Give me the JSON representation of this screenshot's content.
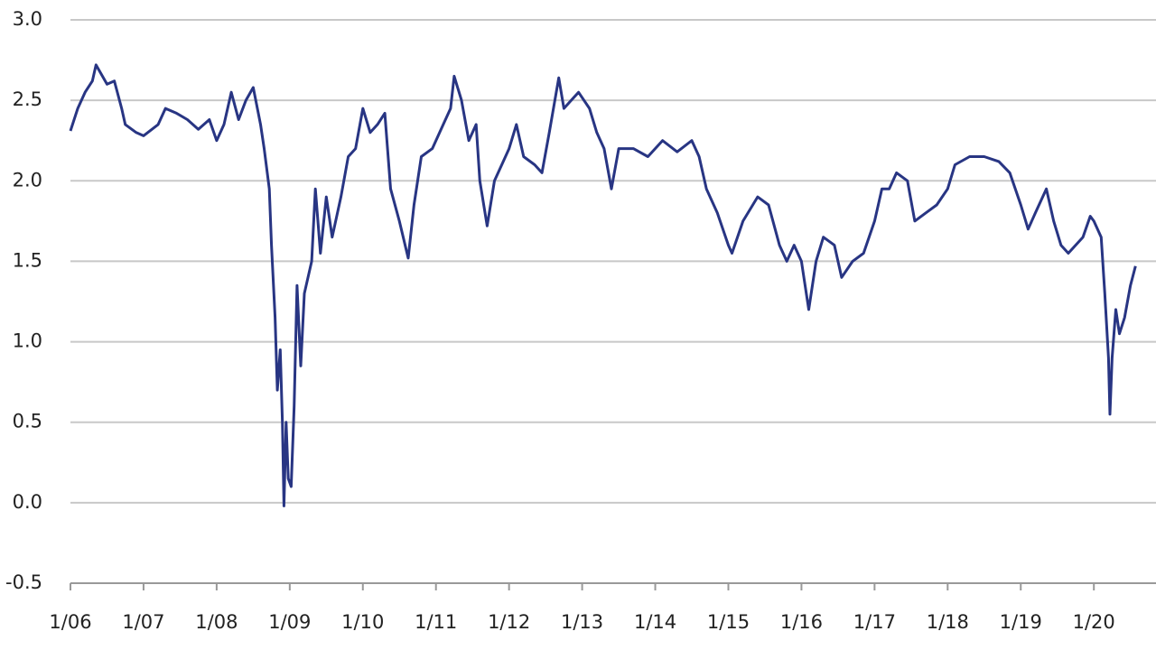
{
  "chart_data": {
    "type": "line",
    "x": [
      2006.0,
      2006.1,
      2006.2,
      2006.3,
      2006.35,
      2006.5,
      2006.6,
      2006.7,
      2006.75,
      2006.9,
      2007.0,
      2007.2,
      2007.3,
      2007.45,
      2007.6,
      2007.75,
      2007.9,
      2008.0,
      2008.1,
      2008.2,
      2008.3,
      2008.4,
      2008.5,
      2008.6,
      2008.65,
      2008.72,
      2008.75,
      2008.8,
      2008.83,
      2008.87,
      2008.9,
      2008.92,
      2008.95,
      2008.98,
      2009.02,
      2009.06,
      2009.1,
      2009.15,
      2009.2,
      2009.3,
      2009.35,
      2009.42,
      2009.5,
      2009.58,
      2009.7,
      2009.8,
      2009.9,
      2010.0,
      2010.1,
      2010.2,
      2010.3,
      2010.38,
      2010.5,
      2010.62,
      2010.7,
      2010.8,
      2010.95,
      2011.1,
      2011.2,
      2011.25,
      2011.35,
      2011.45,
      2011.55,
      2011.6,
      2011.7,
      2011.8,
      2011.9,
      2012.0,
      2012.1,
      2012.2,
      2012.35,
      2012.45,
      2012.55,
      2012.68,
      2012.75,
      2012.85,
      2012.95,
      2013.1,
      2013.2,
      2013.3,
      2013.4,
      2013.5,
      2013.7,
      2013.9,
      2014.1,
      2014.3,
      2014.5,
      2014.6,
      2014.7,
      2014.85,
      2015.0,
      2015.05,
      2015.2,
      2015.4,
      2015.55,
      2015.7,
      2015.8,
      2015.9,
      2016.0,
      2016.1,
      2016.2,
      2016.3,
      2016.45,
      2016.55,
      2016.7,
      2016.85,
      2017.0,
      2017.1,
      2017.2,
      2017.3,
      2017.45,
      2017.55,
      2017.7,
      2017.85,
      2018.0,
      2018.1,
      2018.3,
      2018.5,
      2018.7,
      2018.85,
      2019.0,
      2019.1,
      2019.2,
      2019.35,
      2019.45,
      2019.55,
      2019.65,
      2019.75,
      2019.85,
      2019.95,
      2020.0,
      2020.1,
      2020.15,
      2020.2,
      2020.22,
      2020.25,
      2020.3,
      2020.35,
      2020.42,
      2020.5,
      2020.57
    ],
    "series": [
      {
        "color": "#283583",
        "values": [
          2.31,
          2.45,
          2.55,
          2.62,
          2.72,
          2.6,
          2.62,
          2.45,
          2.35,
          2.3,
          2.28,
          2.35,
          2.45,
          2.42,
          2.38,
          2.32,
          2.38,
          2.25,
          2.35,
          2.55,
          2.38,
          2.5,
          2.58,
          2.35,
          2.2,
          1.95,
          1.6,
          1.15,
          0.7,
          0.95,
          0.5,
          -0.02,
          0.5,
          0.15,
          0.1,
          0.6,
          1.35,
          0.85,
          1.3,
          1.5,
          1.95,
          1.55,
          1.9,
          1.65,
          1.9,
          2.15,
          2.2,
          2.45,
          2.3,
          2.35,
          2.42,
          1.95,
          1.75,
          1.52,
          1.85,
          2.15,
          2.2,
          2.35,
          2.45,
          2.65,
          2.5,
          2.25,
          2.35,
          2.0,
          1.72,
          2.0,
          2.1,
          2.2,
          2.35,
          2.15,
          2.1,
          2.05,
          2.3,
          2.64,
          2.45,
          2.5,
          2.55,
          2.45,
          2.3,
          2.2,
          1.95,
          2.2,
          2.2,
          2.15,
          2.25,
          2.18,
          2.25,
          2.15,
          1.95,
          1.8,
          1.6,
          1.55,
          1.75,
          1.9,
          1.85,
          1.6,
          1.5,
          1.6,
          1.5,
          1.2,
          1.5,
          1.65,
          1.6,
          1.4,
          1.5,
          1.55,
          1.75,
          1.95,
          1.95,
          2.05,
          2.0,
          1.75,
          1.8,
          1.85,
          1.95,
          2.1,
          2.15,
          2.15,
          2.12,
          2.05,
          1.85,
          1.7,
          1.8,
          1.95,
          1.75,
          1.6,
          1.55,
          1.6,
          1.65,
          1.78,
          1.75,
          1.65,
          1.3,
          0.9,
          0.55,
          0.9,
          1.2,
          1.05,
          1.15,
          1.35,
          1.47
        ]
      }
    ],
    "xlim": [
      2006,
      2020.85
    ],
    "xticks": [
      {
        "value": 2006,
        "label": "1/06"
      },
      {
        "value": 2007,
        "label": "1/07"
      },
      {
        "value": 2008,
        "label": "1/08"
      },
      {
        "value": 2009,
        "label": "1/09"
      },
      {
        "value": 2010,
        "label": "1/10"
      },
      {
        "value": 2011,
        "label": "1/11"
      },
      {
        "value": 2012,
        "label": "1/12"
      },
      {
        "value": 2013,
        "label": "1/13"
      },
      {
        "value": 2014,
        "label": "1/14"
      },
      {
        "value": 2015,
        "label": "1/15"
      },
      {
        "value": 2016,
        "label": "1/16"
      },
      {
        "value": 2017,
        "label": "1/17"
      },
      {
        "value": 2018,
        "label": "1/18"
      },
      {
        "value": 2019,
        "label": "1/19"
      },
      {
        "value": 2020,
        "label": "1/20"
      }
    ],
    "ylim": [
      -0.5,
      3
    ],
    "yticks": [
      -0.5,
      {
        "value": 0,
        "label": "0.0"
      },
      0.5,
      {
        "value": 1,
        "label": "1.0"
      },
      1.5,
      {
        "value": 2,
        "label": "2.0"
      },
      2.5,
      {
        "value": 3,
        "label": "3.0"
      }
    ],
    "grid": true
  }
}
